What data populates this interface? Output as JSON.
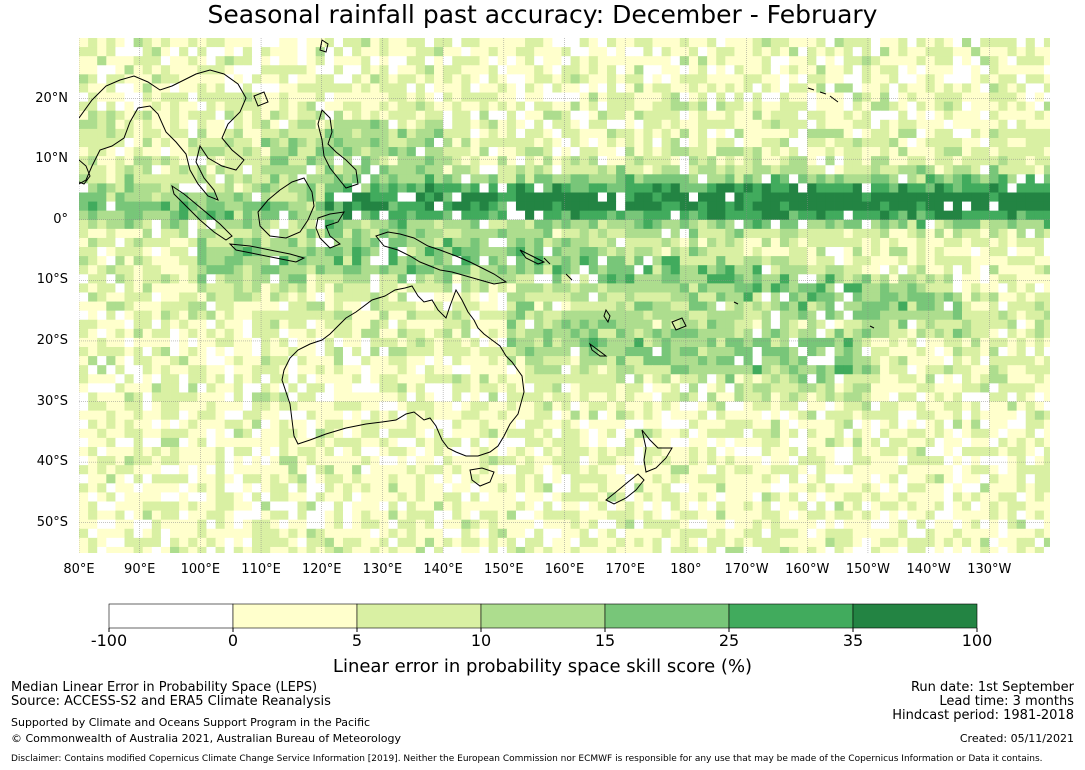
{
  "title": "Seasonal rainfall past accuracy: December - February",
  "map": {
    "lon_range": [
      80,
      240
    ],
    "lat_range": [
      -55,
      30
    ],
    "lat_ticks": [
      {
        "value": 20,
        "label": "20°N"
      },
      {
        "value": 10,
        "label": "10°N"
      },
      {
        "value": 0,
        "label": "0°"
      },
      {
        "value": -10,
        "label": "10°S"
      },
      {
        "value": -20,
        "label": "20°S"
      },
      {
        "value": -30,
        "label": "30°S"
      },
      {
        "value": -40,
        "label": "40°S"
      },
      {
        "value": -50,
        "label": "50°S"
      }
    ],
    "lon_ticks": [
      {
        "value": 80,
        "label": "80°E"
      },
      {
        "value": 90,
        "label": "90°E"
      },
      {
        "value": 100,
        "label": "100°E"
      },
      {
        "value": 110,
        "label": "110°E"
      },
      {
        "value": 120,
        "label": "120°E"
      },
      {
        "value": 130,
        "label": "130°E"
      },
      {
        "value": 140,
        "label": "140°E"
      },
      {
        "value": 150,
        "label": "150°E"
      },
      {
        "value": 160,
        "label": "160°E"
      },
      {
        "value": 170,
        "label": "170°E"
      },
      {
        "value": 180,
        "label": "180°"
      },
      {
        "value": 190,
        "label": "170°W"
      },
      {
        "value": 200,
        "label": "160°W"
      },
      {
        "value": 210,
        "label": "150°W"
      },
      {
        "value": 220,
        "label": "140°W"
      },
      {
        "value": 230,
        "label": "130°W"
      }
    ],
    "colors": {
      "land_outline": "#000000",
      "gridline": "#888888"
    }
  },
  "colorbar": {
    "title": "Linear error in probability space skill score (%)",
    "tick_labels": [
      "-100",
      "0",
      "5",
      "10",
      "15",
      "25",
      "35",
      "100"
    ],
    "colors": [
      "#ffffff",
      "#ffffcc",
      "#d9f0a3",
      "#addd8e",
      "#78c679",
      "#41ab5d",
      "#238443"
    ]
  },
  "footer": {
    "left_line1": "Median Linear Error in Probability Space (LEPS)",
    "left_line2": "Source: ACCESS-S2 and ERA5 Climate Reanalysis",
    "left_line3": "Supported by Climate and Oceans Support Program in the Pacific",
    "left_line4": "© Commonwealth of Australia 2021, Australian Bureau of Meteorology",
    "right_line1": "Run date: 1st September",
    "right_line2": "Lead time: 3 months",
    "right_line3": "Hindcast period: 1981-2018",
    "right_line4": "Created: 05/11/2021",
    "disclaimer": "Disclaimer: Contains modified Copernicus Climate Change Service Information [2019]. Neither the European Commission nor ECMWF is responsible for any use that may be made of the Copernicus Information or Data it contains."
  }
}
